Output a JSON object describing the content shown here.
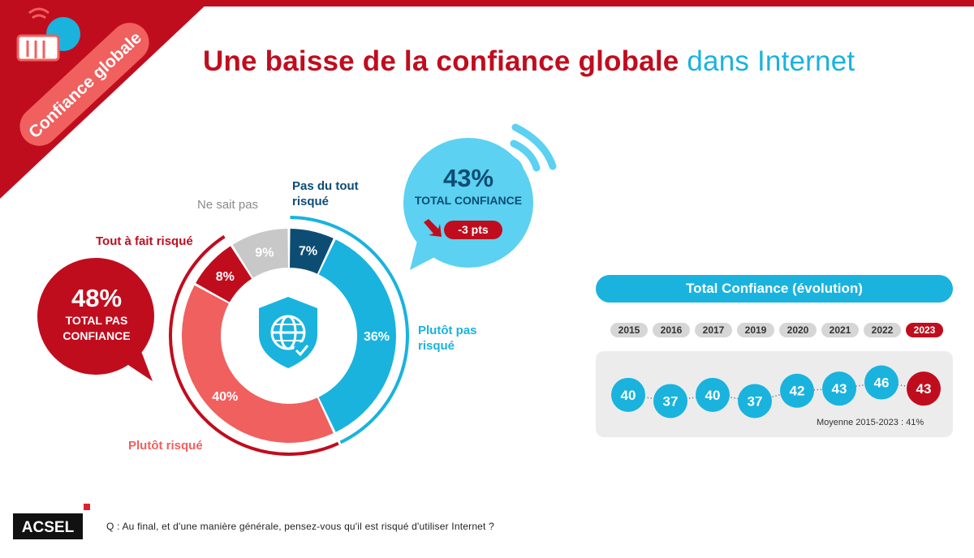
{
  "header": {
    "badge_label": "Confiance globale",
    "title_main": "Une baisse de la confiance globale",
    "title_accent": "dans Internet"
  },
  "colors": {
    "brand_red": "#c00d1e",
    "accent_blue": "#19b3de",
    "dark_blue": "#0d4d74",
    "light_red": "#f0605e",
    "gray": "#c8c8c8"
  },
  "icons": {
    "corner": "handshake-icon",
    "center": "shield-globe-icon",
    "wifi": "wifi-icon"
  },
  "chart_data": [
    {
      "type": "pie",
      "variant": "donut",
      "categories": [
        "Pas du tout risqué",
        "Plutôt pas risqué",
        "Plutôt risqué",
        "Tout à fait risqué",
        "Ne sait pas"
      ],
      "values": [
        7,
        36,
        40,
        8,
        9
      ],
      "value_labels": [
        "7%",
        "36%",
        "40%",
        "8%",
        "9%"
      ],
      "colors": [
        "#0d4d74",
        "#19b3de",
        "#f0605e",
        "#c00d1e",
        "#c8c8c8"
      ],
      "totals": {
        "confiance_value": "43%",
        "confiance_label": "TOTAL CONFIANCE",
        "confiance_delta": "-3 pts",
        "pas_confiance_value": "48%",
        "pas_confiance_label_line1": "TOTAL PAS",
        "pas_confiance_label_line2": "CONFIANCE"
      }
    },
    {
      "type": "line",
      "title": "Total Confiance (évolution)",
      "categories": [
        "2015",
        "2016",
        "2017",
        "2019",
        "2020",
        "2021",
        "2022",
        "2023"
      ],
      "values": [
        40,
        37,
        40,
        37,
        42,
        43,
        46,
        43
      ],
      "highlight": "2023",
      "note": "Moyenne 2015-2023 : 41%"
    }
  ],
  "footer": {
    "logo_text": "ACSEL",
    "question": "Q : Au final, et d'une manière générale, pensez-vous qu'il est risqué d'utiliser Internet ?"
  }
}
